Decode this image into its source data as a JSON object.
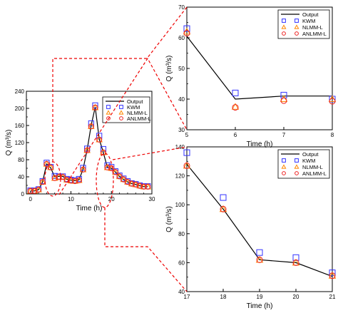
{
  "colors": {
    "output": "#000000",
    "kwm": "#3333ff",
    "nlmm": "#ff8800",
    "anlmm": "#ee2222",
    "connector": "#ee0000"
  },
  "legend_labels": [
    "Output",
    "KWM",
    "NLMM-L",
    "ANLMM-L"
  ],
  "chart_data": [
    {
      "type": "line",
      "xlabel": "Time (h)",
      "ylabel": "Q (m³/s)",
      "xlim": [
        -1,
        30
      ],
      "ylim": [
        0,
        240
      ],
      "xticks": [
        0,
        10,
        20,
        30
      ],
      "yticks": [
        0,
        40,
        80,
        120,
        160,
        200,
        240
      ],
      "legend_position": "top-right",
      "series": [
        {
          "name": "Output",
          "x": [
            0,
            1,
            2,
            3,
            4,
            5,
            6,
            7,
            8,
            9,
            10,
            11,
            12,
            13,
            14,
            15,
            16,
            17,
            18,
            19,
            20,
            21,
            22,
            23,
            24,
            25,
            26,
            27,
            28,
            29
          ],
          "y": [
            7,
            7,
            10,
            28,
            70,
            61,
            40,
            41,
            41,
            34,
            32,
            31,
            33,
            58,
            103,
            160,
            203,
            128,
            97,
            62,
            60,
            51,
            41,
            34,
            28,
            24,
            22,
            19,
            17,
            17
          ]
        },
        {
          "name": "KWM",
          "x": [
            0,
            1,
            2,
            3,
            4,
            5,
            6,
            7,
            8,
            9,
            10,
            11,
            12,
            13,
            14,
            15,
            16,
            17,
            18,
            19,
            20,
            21,
            22,
            23,
            24,
            25,
            26,
            27,
            28,
            29
          ],
          "y": [
            8,
            8,
            11,
            30,
            73,
            63,
            42,
            41,
            41,
            35,
            33,
            32,
            35,
            61,
            106,
            165,
            207,
            136,
            105,
            67,
            63,
            53,
            43,
            36,
            30,
            25,
            23,
            20,
            18,
            18
          ]
        },
        {
          "name": "NLMM-L",
          "x": [
            0,
            1,
            2,
            3,
            4,
            5,
            6,
            7,
            8,
            9,
            10,
            11,
            12,
            13,
            14,
            15,
            16,
            17,
            18,
            19,
            20,
            21,
            22,
            23,
            24,
            25,
            26,
            27,
            28,
            29
          ],
          "y": [
            7,
            7,
            10,
            28,
            70,
            62,
            37,
            40,
            40,
            33,
            31,
            30,
            32,
            57,
            102,
            158,
            202,
            127,
            97,
            62,
            60,
            51,
            41,
            34,
            28,
            24,
            22,
            19,
            17,
            17
          ]
        },
        {
          "name": "ANLMM-L",
          "x": [
            0,
            1,
            2,
            3,
            4,
            5,
            6,
            7,
            8,
            9,
            10,
            11,
            12,
            13,
            14,
            15,
            16,
            17,
            18,
            19,
            20,
            21,
            22,
            23,
            24,
            25,
            26,
            27,
            28,
            29
          ],
          "y": [
            7,
            7,
            10,
            28,
            70,
            62,
            37,
            39.5,
            39.5,
            33,
            31,
            30,
            32,
            57,
            102,
            158,
            202,
            127,
            97,
            62,
            60,
            51,
            41,
            34,
            28,
            24,
            22,
            19,
            17,
            17
          ]
        }
      ]
    },
    {
      "type": "line",
      "xlabel": "Time (h)",
      "ylabel": "Q (m³/s)",
      "xlim": [
        5,
        8
      ],
      "ylim": [
        30,
        70
      ],
      "xticks": [
        5,
        6,
        7,
        8
      ],
      "yticks": [
        30,
        40,
        50,
        60,
        70
      ],
      "legend_position": "top-right",
      "series": [
        {
          "name": "Output",
          "x": [
            5,
            6,
            7,
            8
          ],
          "y": [
            60.5,
            40,
            41,
            41
          ]
        },
        {
          "name": "KWM",
          "x": [
            5,
            6,
            7,
            8
          ],
          "y": [
            63,
            42,
            41.3,
            40
          ]
        },
        {
          "name": "NLMM-L",
          "x": [
            5,
            6,
            7,
            8
          ],
          "y": [
            62,
            37.5,
            40,
            40
          ]
        },
        {
          "name": "ANLMM-L",
          "x": [
            5,
            6,
            7,
            8
          ],
          "y": [
            61.5,
            37.3,
            39.5,
            39.3
          ]
        }
      ]
    },
    {
      "type": "line",
      "xlabel": "Time (h)",
      "ylabel": "Q (m³/s)",
      "xlim": [
        17,
        21
      ],
      "ylim": [
        40,
        140
      ],
      "xticks": [
        17,
        18,
        19,
        20,
        21
      ],
      "yticks": [
        40,
        60,
        80,
        100,
        120,
        140
      ],
      "legend_position": "top-right",
      "series": [
        {
          "name": "Output",
          "x": [
            17,
            18,
            19,
            20,
            21
          ],
          "y": [
            128,
            97,
            62,
            60,
            50.5
          ]
        },
        {
          "name": "KWM",
          "x": [
            17,
            18,
            19,
            20,
            21
          ],
          "y": [
            136,
            105,
            67,
            63.5,
            53
          ]
        },
        {
          "name": "NLMM-L",
          "x": [
            17,
            18,
            19,
            20,
            21
          ],
          "y": [
            127,
            97,
            62,
            60,
            51
          ]
        },
        {
          "name": "ANLMM-L",
          "x": [
            17,
            18,
            19,
            20,
            21
          ],
          "y": [
            127,
            97,
            62,
            60,
            51
          ]
        }
      ]
    }
  ]
}
